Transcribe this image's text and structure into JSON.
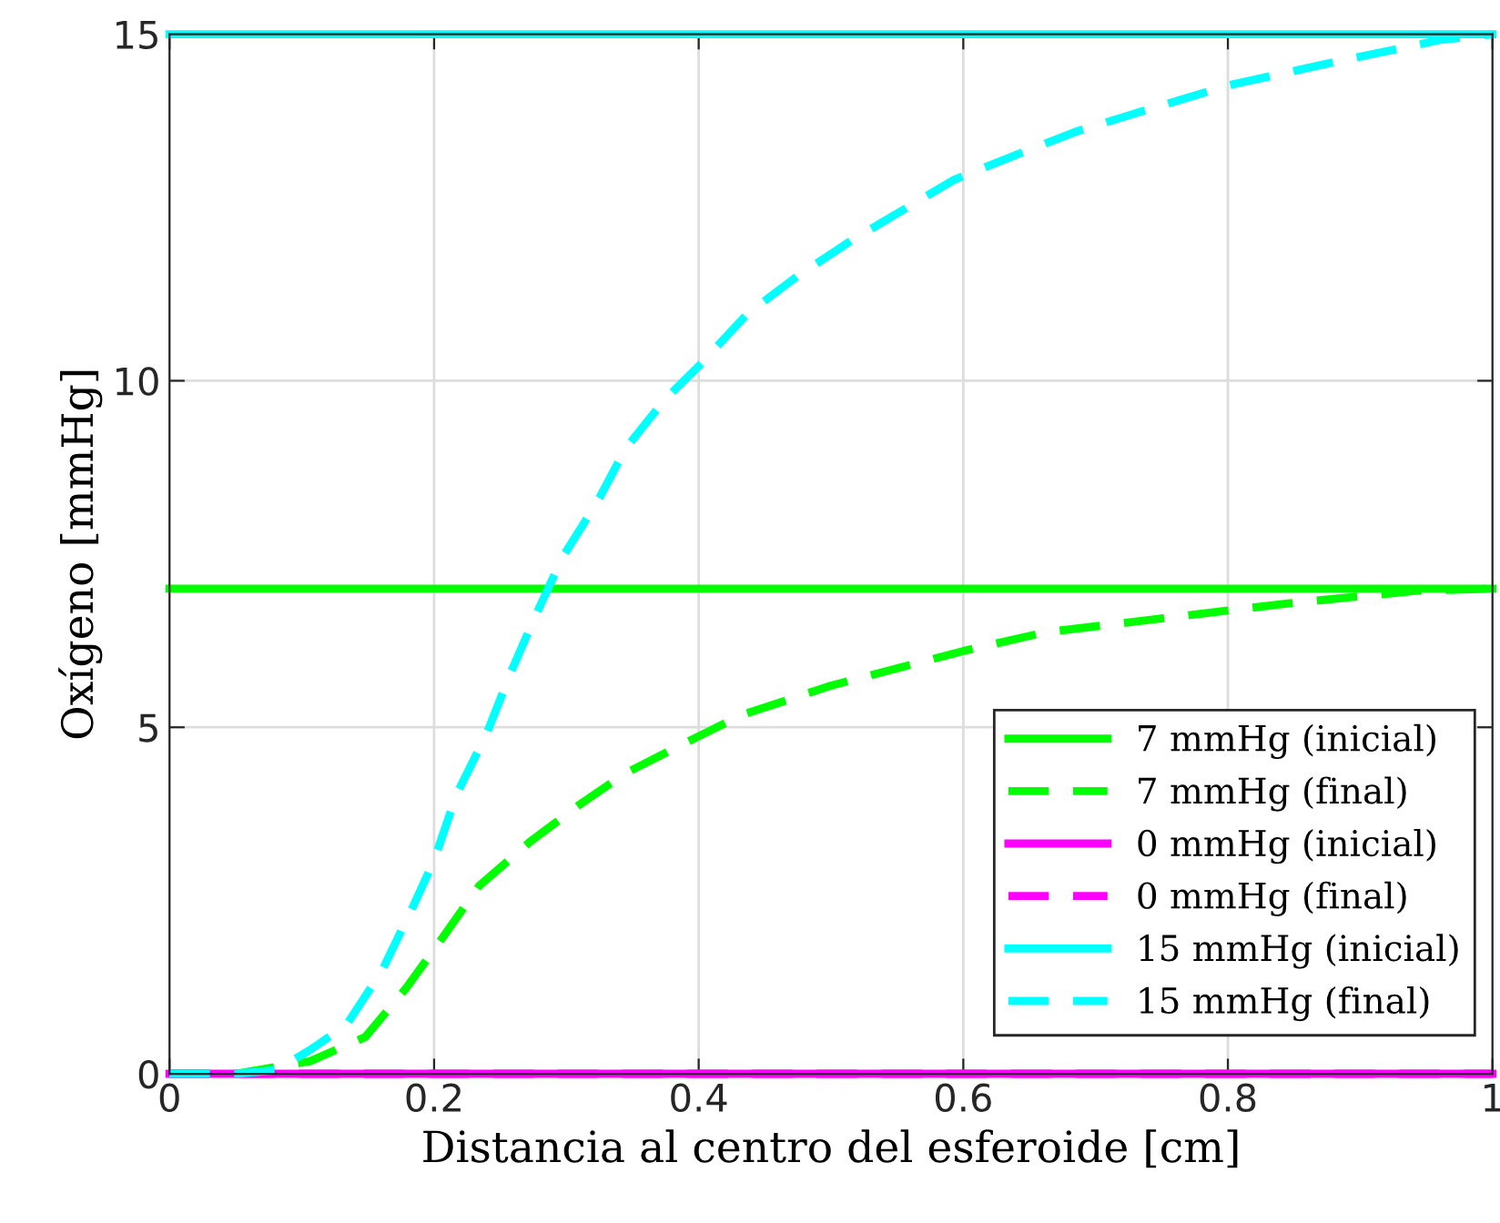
{
  "chart_data": {
    "type": "line",
    "xlabel": "Distancia al centro del esferoide [cm]",
    "ylabel": "Oxígeno [mmHg]",
    "xlim": [
      0,
      1
    ],
    "ylim": [
      0,
      15
    ],
    "xticks": [
      0,
      0.2,
      0.4,
      0.6,
      0.8,
      1
    ],
    "yticks": [
      0,
      5,
      10,
      15
    ],
    "grid": true,
    "legend": "bottom right",
    "series": [
      {
        "name": "7 mmHg (inicial)",
        "color": "#00ff00",
        "line_style": "solid",
        "x": [
          0,
          1
        ],
        "values": [
          7,
          7
        ]
      },
      {
        "name": "7 mmHg (final)",
        "color": "#00ff00",
        "line_style": "dashed",
        "x": [
          0,
          0.05,
          0.106,
          0.148,
          0.179,
          0.2,
          0.234,
          0.272,
          0.309,
          0.345,
          0.4,
          0.433,
          0.5,
          0.6,
          0.662,
          0.754,
          0.847,
          0.943,
          1
        ],
        "values": [
          0,
          0,
          0.18,
          0.53,
          1.24,
          1.79,
          2.71,
          3.34,
          3.87,
          4.34,
          4.87,
          5.18,
          5.6,
          6.1,
          6.37,
          6.58,
          6.79,
          6.97,
          7
        ]
      },
      {
        "name": "0 mmHg (inicial)",
        "color": "#ff00ff",
        "line_style": "solid",
        "x": [
          0,
          1
        ],
        "values": [
          0,
          0
        ]
      },
      {
        "name": "0 mmHg (final)",
        "color": "#ff00ff",
        "line_style": "dashed",
        "x": [
          0,
          1
        ],
        "values": [
          0,
          0
        ]
      },
      {
        "name": "15 mmHg (inicial)",
        "color": "#00ffff",
        "line_style": "solid",
        "x": [
          0,
          1
        ],
        "values": [
          15,
          15
        ]
      },
      {
        "name": "15 mmHg (final)",
        "color": "#00ffff",
        "line_style": "dashed",
        "x": [
          0,
          0.05,
          0.08,
          0.106,
          0.134,
          0.161,
          0.185,
          0.2,
          0.217,
          0.24,
          0.258,
          0.276,
          0.297,
          0.323,
          0.345,
          0.375,
          0.4,
          0.437,
          0.474,
          0.516,
          0.593,
          0.644,
          0.686,
          0.737,
          0.8,
          0.869,
          0.961,
          1
        ],
        "values": [
          0,
          0,
          0.05,
          0.34,
          0.71,
          1.5,
          2.45,
          3.08,
          4.03,
          4.92,
          5.79,
          6.58,
          7.45,
          8.24,
          9.03,
          9.74,
          10.21,
          10.97,
          11.5,
          12.03,
          12.9,
          13.29,
          13.6,
          13.9,
          14.26,
          14.55,
          14.92,
          15
        ]
      }
    ]
  }
}
